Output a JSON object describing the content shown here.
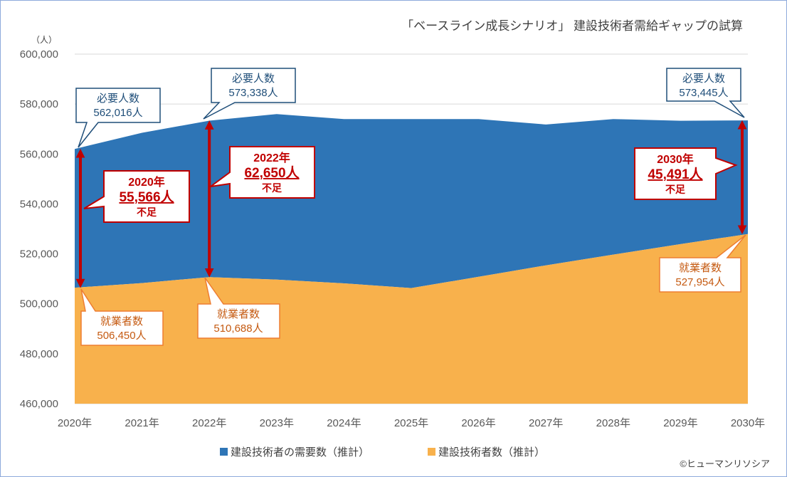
{
  "chart_data": {
    "type": "area",
    "title": "「ベースライン成長シナリオ」 建設技術者需給ギャップの試算",
    "ylabel": "（人）",
    "ylim": [
      460000,
      600000
    ],
    "yticks": [
      "460,000",
      "480,000",
      "500,000",
      "520,000",
      "540,000",
      "560,000",
      "580,000",
      "600,000"
    ],
    "ytick_values": [
      460000,
      480000,
      500000,
      520000,
      540000,
      560000,
      580000,
      600000
    ],
    "categories": [
      "2020年",
      "2021年",
      "2022年",
      "2023年",
      "2024年",
      "2025年",
      "2026年",
      "2027年",
      "2028年",
      "2029年",
      "2030年"
    ],
    "series": [
      {
        "name": "建設技術者の需要数（推計）",
        "color": "#2e75b6",
        "values": [
          562016,
          568500,
          573338,
          576000,
          574000,
          574000,
          574000,
          571800,
          574000,
          573300,
          573445
        ]
      },
      {
        "name": "建設技術者数（推計）",
        "color": "#f8b14c",
        "values": [
          506450,
          508300,
          510688,
          509700,
          508200,
          506300,
          510800,
          515400,
          519700,
          523900,
          527954
        ]
      }
    ],
    "annotations": {
      "demand": [
        {
          "label": "必要人数",
          "value": "562,016人",
          "year_index": 0
        },
        {
          "label": "必要人数",
          "value": "573,338人",
          "year_index": 2
        },
        {
          "label": "必要人数",
          "value": "573,445人",
          "year_index": 10
        }
      ],
      "supply": [
        {
          "label": "就業者数",
          "value": "506,450人",
          "year_index": 0
        },
        {
          "label": "就業者数",
          "value": "510,688人",
          "year_index": 2
        },
        {
          "label": "就業者数",
          "value": "527,954人",
          "year_index": 10
        }
      ],
      "gap": [
        {
          "year": "2020年",
          "amount": "55,566人",
          "suffix": "不足",
          "year_index": 0
        },
        {
          "year": "2022年",
          "amount": "62,650人",
          "suffix": "不足",
          "year_index": 2
        },
        {
          "year": "2030年",
          "amount": "45,491人",
          "suffix": "不足",
          "year_index": 10
        }
      ]
    },
    "grid": true,
    "legend_position": "bottom"
  },
  "copyright": "©ヒューマンリソシア"
}
